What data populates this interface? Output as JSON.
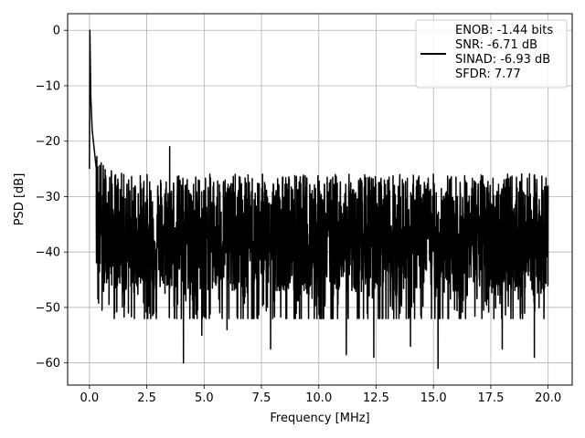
{
  "chart_data": {
    "type": "line",
    "xlabel": "Frequency [MHz]",
    "ylabel": "PSD [dB]",
    "xlim": [
      -0.95,
      21.05
    ],
    "ylim": [
      -64,
      3
    ],
    "x_ticks": [
      0,
      2.5,
      5,
      7.5,
      10,
      12.5,
      15,
      17.5,
      20
    ],
    "x_tick_labels": [
      "0.0",
      "2.5",
      "5.0",
      "7.5",
      "10.0",
      "12.5",
      "15.0",
      "17.5",
      "20.0"
    ],
    "y_ticks": [
      0,
      -10,
      -20,
      -30,
      -40,
      -50,
      -60
    ],
    "y_tick_labels": [
      "0",
      "−10",
      "−20",
      "−30",
      "−40",
      "−50",
      "−60"
    ],
    "grid": true,
    "legend_position": "top-right",
    "series": [
      {
        "color": "#000000",
        "description": "Noisy PSD trace: peak 0 dB at 0 MHz, falling to a noise floor fluctuating roughly between -22 and -50 dB across 0-20 MHz, with deep dips near -60 dB",
        "key_points": [
          {
            "x": 0.0,
            "y": -25
          },
          {
            "x": 0.02,
            "y": 0
          },
          {
            "x": 0.06,
            "y": -12
          },
          {
            "x": 0.12,
            "y": -18
          },
          {
            "x": 0.3,
            "y": -25
          },
          {
            "x": 0.55,
            "y": -50.5
          },
          {
            "x": 1.1,
            "y": -51
          },
          {
            "x": 1.7,
            "y": -51
          },
          {
            "x": 3.5,
            "y": -21
          },
          {
            "x": 4.1,
            "y": -60
          },
          {
            "x": 4.9,
            "y": -55
          },
          {
            "x": 6.0,
            "y": -54
          },
          {
            "x": 7.9,
            "y": -57.5
          },
          {
            "x": 11.2,
            "y": -58.5
          },
          {
            "x": 12.4,
            "y": -59
          },
          {
            "x": 14.0,
            "y": -57
          },
          {
            "x": 15.2,
            "y": -61
          },
          {
            "x": 18.0,
            "y": -57.5
          },
          {
            "x": 19.4,
            "y": -59
          },
          {
            "x": 20.0,
            "y": -28
          }
        ],
        "noise_floor_mean": -35,
        "noise_floor_upper": -22,
        "noise_floor_lower": -50
      }
    ],
    "legend": [
      "ENOB: -1.44 bits",
      "SNR: -6.71 dB",
      "SINAD: -6.93 dB",
      "SFDR: 7.77"
    ]
  }
}
